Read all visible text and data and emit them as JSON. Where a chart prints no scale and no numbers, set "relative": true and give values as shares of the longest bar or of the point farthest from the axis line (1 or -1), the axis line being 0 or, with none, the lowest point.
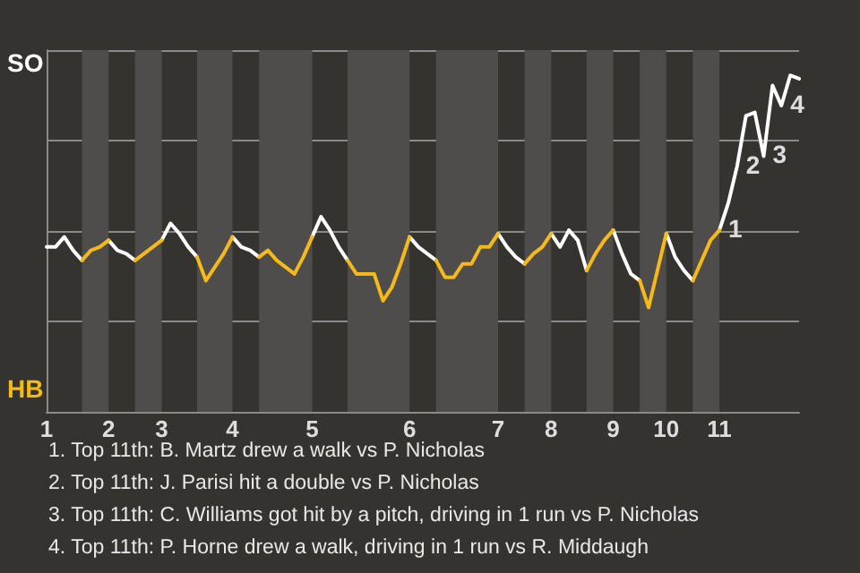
{
  "chart_data": {
    "type": "line",
    "relative": true,
    "categories": [
      "1",
      null,
      null,
      null,
      null,
      null,
      null,
      "2",
      null,
      null,
      null,
      null,
      null,
      "3",
      null,
      null,
      null,
      null,
      null,
      null,
      null,
      "4",
      null,
      null,
      null,
      null,
      null,
      null,
      null,
      null,
      "5",
      null,
      null,
      null,
      null,
      null,
      null,
      null,
      null,
      null,
      null,
      "6",
      null,
      null,
      null,
      null,
      null,
      null,
      null,
      null,
      null,
      "7",
      null,
      null,
      null,
      null,
      null,
      "8",
      null,
      null,
      null,
      null,
      null,
      null,
      "9",
      null,
      null,
      null,
      null,
      null,
      "10",
      null,
      null,
      null,
      null,
      null,
      "11",
      null,
      null,
      null,
      null,
      null,
      null,
      null,
      null,
      null
    ],
    "grid": "y",
    "series": [
      {
        "color": "#ffffff",
        "values": [
          0.49,
          0.49,
          0.52,
          0.48,
          0.45,
          null,
          null,
          0.51,
          0.48,
          0.47,
          0.45,
          null,
          null,
          0.51,
          0.56,
          0.53,
          0.49,
          0.46,
          null,
          null,
          null,
          0.52,
          0.49,
          0.48,
          0.46,
          null,
          null,
          null,
          null,
          null,
          0.52,
          0.58,
          0.54,
          0.49,
          0.45,
          null,
          null,
          null,
          null,
          null,
          null,
          0.52,
          0.49,
          0.47,
          0.45,
          null,
          null,
          null,
          null,
          null,
          null,
          0.53,
          0.49,
          0.46,
          0.44,
          null,
          null,
          0.53,
          0.49,
          0.54,
          0.51,
          0.42,
          null,
          null,
          0.54,
          0.47,
          0.41,
          0.39,
          null,
          null,
          0.53,
          0.46,
          0.42,
          0.39,
          null,
          null,
          0.54,
          0.62,
          0.73,
          0.88,
          0.89,
          0.76,
          0.97,
          0.91,
          1,
          0.99
        ]
      },
      {
        "color": "#f5b918",
        "values": [
          null,
          null,
          null,
          null,
          0.45,
          0.48,
          0.49,
          0.51,
          null,
          null,
          0.45,
          0.47,
          0.49,
          0.51,
          null,
          null,
          null,
          0.46,
          0.39,
          0.43,
          0.47,
          0.52,
          null,
          null,
          0.46,
          0.48,
          0.45,
          0.43,
          0.41,
          0.46,
          0.52,
          null,
          null,
          null,
          0.45,
          0.41,
          0.41,
          0.41,
          0.33,
          0.37,
          0.44,
          0.52,
          null,
          null,
          0.45,
          0.4,
          0.4,
          0.44,
          0.44,
          0.49,
          0.49,
          0.53,
          null,
          null,
          0.44,
          0.47,
          0.49,
          0.53,
          null,
          null,
          null,
          0.42,
          0.47,
          0.51,
          0.54,
          null,
          null,
          0.39,
          0.31,
          0.42,
          0.53,
          null,
          null,
          0.39,
          0.45,
          0.51,
          0.54,
          null,
          null,
          null,
          null,
          null,
          null,
          null,
          null,
          null
        ]
      }
    ],
    "annotations": [
      {
        "text": "1",
        "x": "11",
        "y": 0.54
      },
      "SO",
      "HB",
      "2",
      "3",
      "4",
      "1. Top 11th: B. Martz drew a walk vs P. Nicholas",
      "2. Top 11th: J. Parisi hit a double vs P. Nicholas",
      "3. Top 11th: C. Williams got hit by a pitch, driving in 1 run vs P. Nicholas",
      "4. Top 11th: P. Horne drew a walk, driving in 1 run vs R. Middaugh"
    ]
  }
}
